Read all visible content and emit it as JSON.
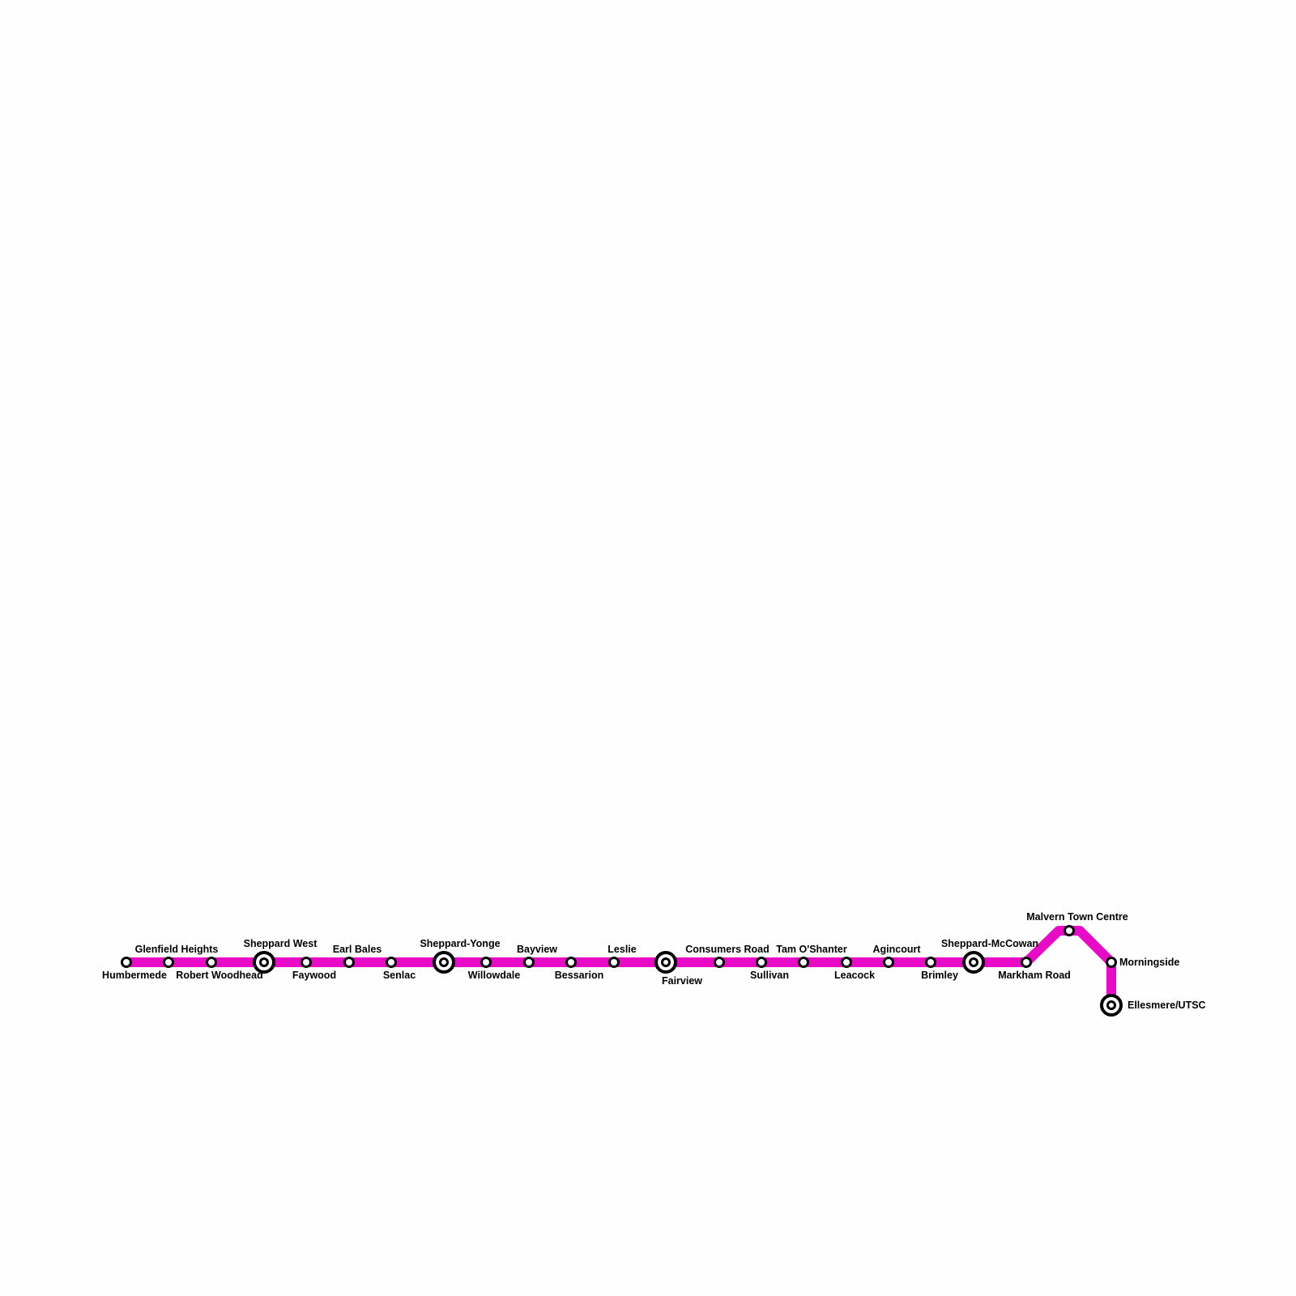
{
  "line": {
    "color": "#e80ac6"
  },
  "stations": [
    {
      "name": "Humbermede",
      "type": "station"
    },
    {
      "name": "Glenfield Heights",
      "type": "station"
    },
    {
      "name": "Robert Woodhead",
      "type": "station"
    },
    {
      "name": "Sheppard West",
      "type": "interchange"
    },
    {
      "name": "Faywood",
      "type": "station"
    },
    {
      "name": "Earl Bales",
      "type": "station"
    },
    {
      "name": "Senlac",
      "type": "station"
    },
    {
      "name": "Sheppard-Yonge",
      "type": "interchange"
    },
    {
      "name": "Willowdale",
      "type": "station"
    },
    {
      "name": "Bayview",
      "type": "station"
    },
    {
      "name": "Bessarion",
      "type": "station"
    },
    {
      "name": "Leslie",
      "type": "station"
    },
    {
      "name": "Fairview",
      "type": "interchange"
    },
    {
      "name": "Consumers Road",
      "type": "station"
    },
    {
      "name": "Sullivan",
      "type": "station"
    },
    {
      "name": "Tam O'Shanter",
      "type": "station"
    },
    {
      "name": "Leacock",
      "type": "station"
    },
    {
      "name": "Agincourt",
      "type": "station"
    },
    {
      "name": "Brimley",
      "type": "station"
    },
    {
      "name": "Sheppard-McCowan",
      "type": "interchange"
    },
    {
      "name": "Markham Road",
      "type": "station"
    },
    {
      "name": "Malvern Town Centre",
      "type": "station"
    },
    {
      "name": "Morningside",
      "type": "station"
    },
    {
      "name": "Ellesmere/UTSC",
      "type": "interchange"
    }
  ]
}
